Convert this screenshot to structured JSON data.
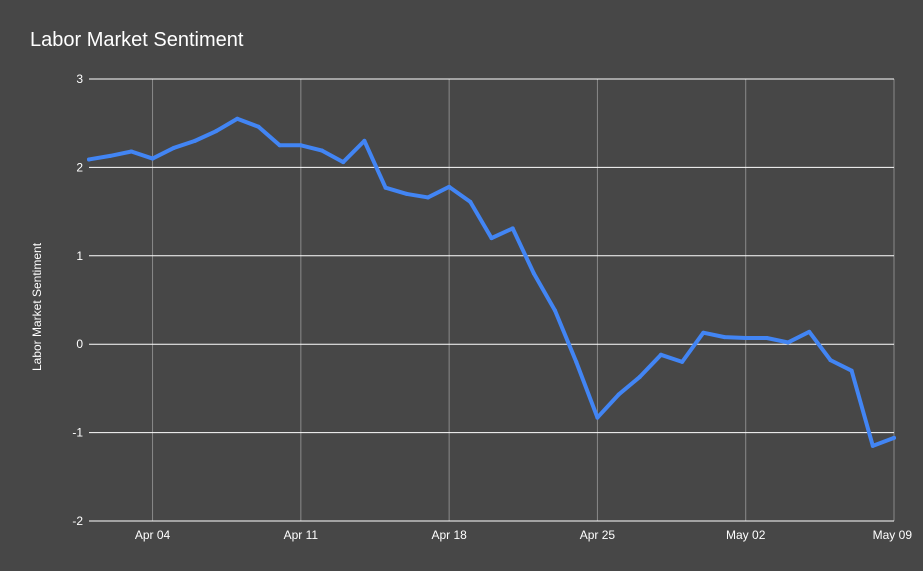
{
  "colors": {
    "background": "#474747",
    "series_line": "#4285f4",
    "gridline_horizontal": "#ffffff",
    "gridline_vertical": "#8a8a8a",
    "text": "#ffffff"
  },
  "chart_data": {
    "type": "line",
    "title": "Labor Market Sentiment",
    "xlabel": "",
    "ylabel": "Labor Market Sentiment",
    "ylim": [
      -2,
      3
    ],
    "xlim": [
      "2020-04-01",
      "2020-05-09"
    ],
    "grid": true,
    "legend": "none",
    "y_ticks": [
      "3",
      "2",
      "1",
      "0",
      "-1",
      "-2"
    ],
    "x_ticks": [
      {
        "date": "2020-04-04",
        "label": "Apr 04"
      },
      {
        "date": "2020-04-11",
        "label": "Apr 11"
      },
      {
        "date": "2020-04-18",
        "label": "Apr 18"
      },
      {
        "date": "2020-04-25",
        "label": "Apr 25"
      },
      {
        "date": "2020-05-02",
        "label": "May 02"
      },
      {
        "date": "2020-05-09",
        "label": "May 09"
      }
    ],
    "x": [
      "2020-04-01",
      "2020-04-02",
      "2020-04-03",
      "2020-04-04",
      "2020-04-05",
      "2020-04-06",
      "2020-04-07",
      "2020-04-08",
      "2020-04-09",
      "2020-04-10",
      "2020-04-11",
      "2020-04-12",
      "2020-04-13",
      "2020-04-14",
      "2020-04-15",
      "2020-04-16",
      "2020-04-17",
      "2020-04-18",
      "2020-04-19",
      "2020-04-20",
      "2020-04-21",
      "2020-04-22",
      "2020-04-23",
      "2020-04-24",
      "2020-04-25",
      "2020-04-26",
      "2020-04-27",
      "2020-04-28",
      "2020-04-29",
      "2020-04-30",
      "2020-05-01",
      "2020-05-02",
      "2020-05-03",
      "2020-05-04",
      "2020-05-05",
      "2020-05-06",
      "2020-05-07",
      "2020-05-08",
      "2020-05-09"
    ],
    "series": [
      {
        "values": [
          2.09,
          2.13,
          2.18,
          2.1,
          2.22,
          2.3,
          2.41,
          2.55,
          2.46,
          2.25,
          2.25,
          2.19,
          2.06,
          2.3,
          1.77,
          1.7,
          1.66,
          1.78,
          1.61,
          1.2,
          1.31,
          0.8,
          0.38,
          -0.2,
          -0.83,
          -0.57,
          -0.37,
          -0.12,
          -0.2,
          0.13,
          0.08,
          0.07,
          0.07,
          0.02,
          0.14,
          -0.18,
          -0.3,
          -1.15,
          -1.06
        ]
      }
    ]
  }
}
